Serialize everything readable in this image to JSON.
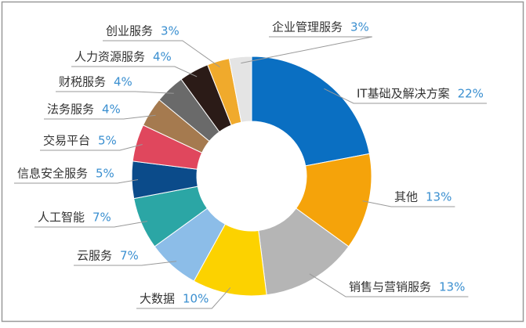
{
  "chart_data": {
    "type": "donut",
    "categories": [
      "IT基础及解决方案",
      "其他",
      "销售与营销服务",
      "大数据",
      "云服务",
      "人工智能",
      "信息安全服务",
      "交易平台",
      "法务服务",
      "财税服务",
      "人力资源服务",
      "创业服务",
      "企业管理服务"
    ],
    "values": [
      22,
      13,
      13,
      10,
      7,
      7,
      5,
      5,
      4,
      4,
      4,
      3,
      3
    ],
    "value_labels": [
      "22%",
      "13%",
      "13%",
      "10%",
      "7%",
      "7%",
      "5%",
      "5%",
      "4%",
      "4%",
      "4%",
      "3%",
      "3%"
    ],
    "colors": [
      "#0a6fc2",
      "#f5a30a",
      "#b5b5b5",
      "#fcd200",
      "#8cbde8",
      "#2ba6a5",
      "#0b4b8a",
      "#e0475d",
      "#a57a4f",
      "#6a6a6a",
      "#2b1b17",
      "#f0aa2c",
      "#e4e4e4"
    ]
  }
}
